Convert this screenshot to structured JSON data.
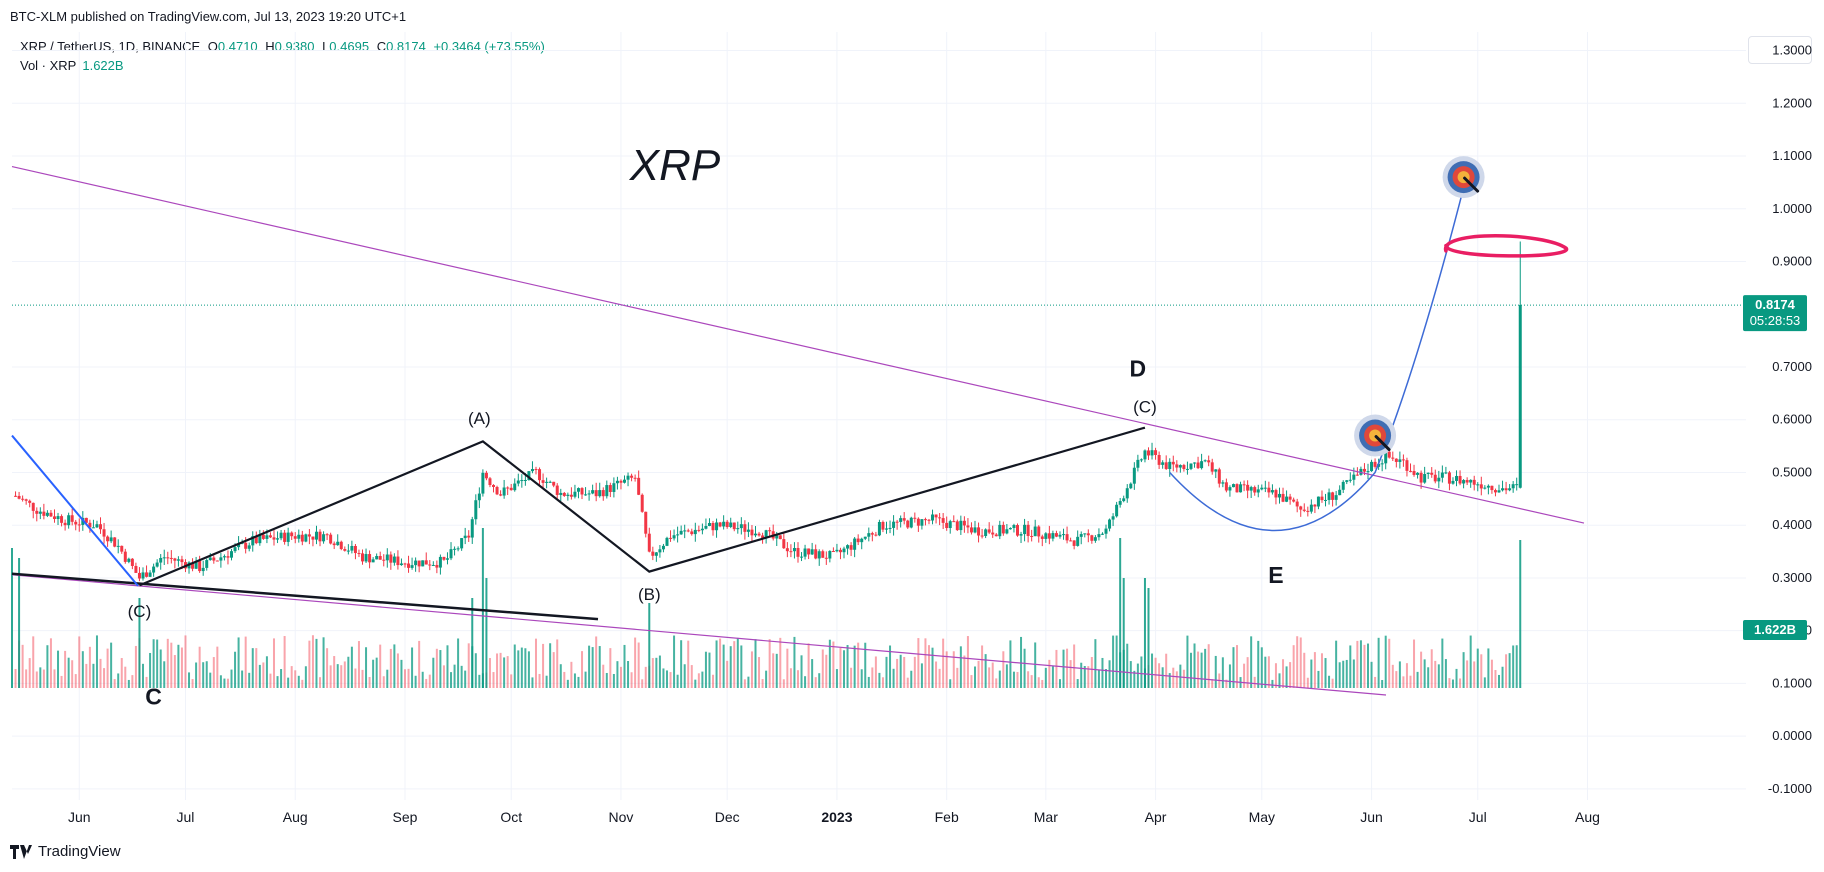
{
  "header": {
    "published": "BTC-XLM published on TradingView.com, Jul 13, 2023 19:20 UTC+1"
  },
  "legend": {
    "symbol": "XRP / TetherUS, 1D, BINANCE",
    "open_label": "O",
    "open": "0.4710",
    "high_label": "H",
    "high": "0.9380",
    "low_label": "L",
    "low": "0.4695",
    "close_label": "C",
    "close": "0.8174",
    "change": "+0.3464 (+73.55%)",
    "volume_label": "Vol · XRP",
    "volume": "1.622B"
  },
  "price_tag": {
    "value": "0.8174",
    "countdown": "05:28:53"
  },
  "volume_tag": "1.622B",
  "footer": {
    "brand": "TradingView"
  },
  "colors": {
    "up": "#089981",
    "down": "#f23645",
    "trendline": "#ab47bc",
    "blue": "#2962ff",
    "pink": "#e91e63"
  },
  "chart_data": {
    "type": "candlestick",
    "title": "XRP",
    "y_ticks": [
      "1.3000",
      "1.2000",
      "1.1000",
      "1.0000",
      "0.9000",
      "0.7000",
      "0.6000",
      "0.5000",
      "0.4000",
      "0.3000",
      "0.2000",
      "0.1000",
      "0.0000",
      "-0.1000"
    ],
    "ylim": [
      -0.14,
      1.32
    ],
    "x_ticks": [
      "Jun",
      "Jul",
      "Aug",
      "Sep",
      "Oct",
      "Nov",
      "Dec",
      "2023",
      "Feb",
      "Mar",
      "Apr",
      "May",
      "Jun",
      "Jul",
      "Aug"
    ],
    "wave_labels": [
      "(C)",
      "(A)",
      "(B)",
      "(C)",
      "D",
      "E",
      "C"
    ],
    "wave_points": [
      {
        "label": "(C)",
        "date": "2022-06-18",
        "price": 0.286
      },
      {
        "label": "(A)",
        "date": "2022-09-23",
        "price": 0.559
      },
      {
        "label": "(B)",
        "date": "2022-11-09",
        "price": 0.312
      },
      {
        "label": "(C)",
        "date": "2023-03-29",
        "price": 0.585
      }
    ],
    "last_close": 0.8174,
    "last_high": 0.938,
    "target_prices": [
      1.06,
      0.57
    ],
    "volume_last": "1.622B"
  }
}
